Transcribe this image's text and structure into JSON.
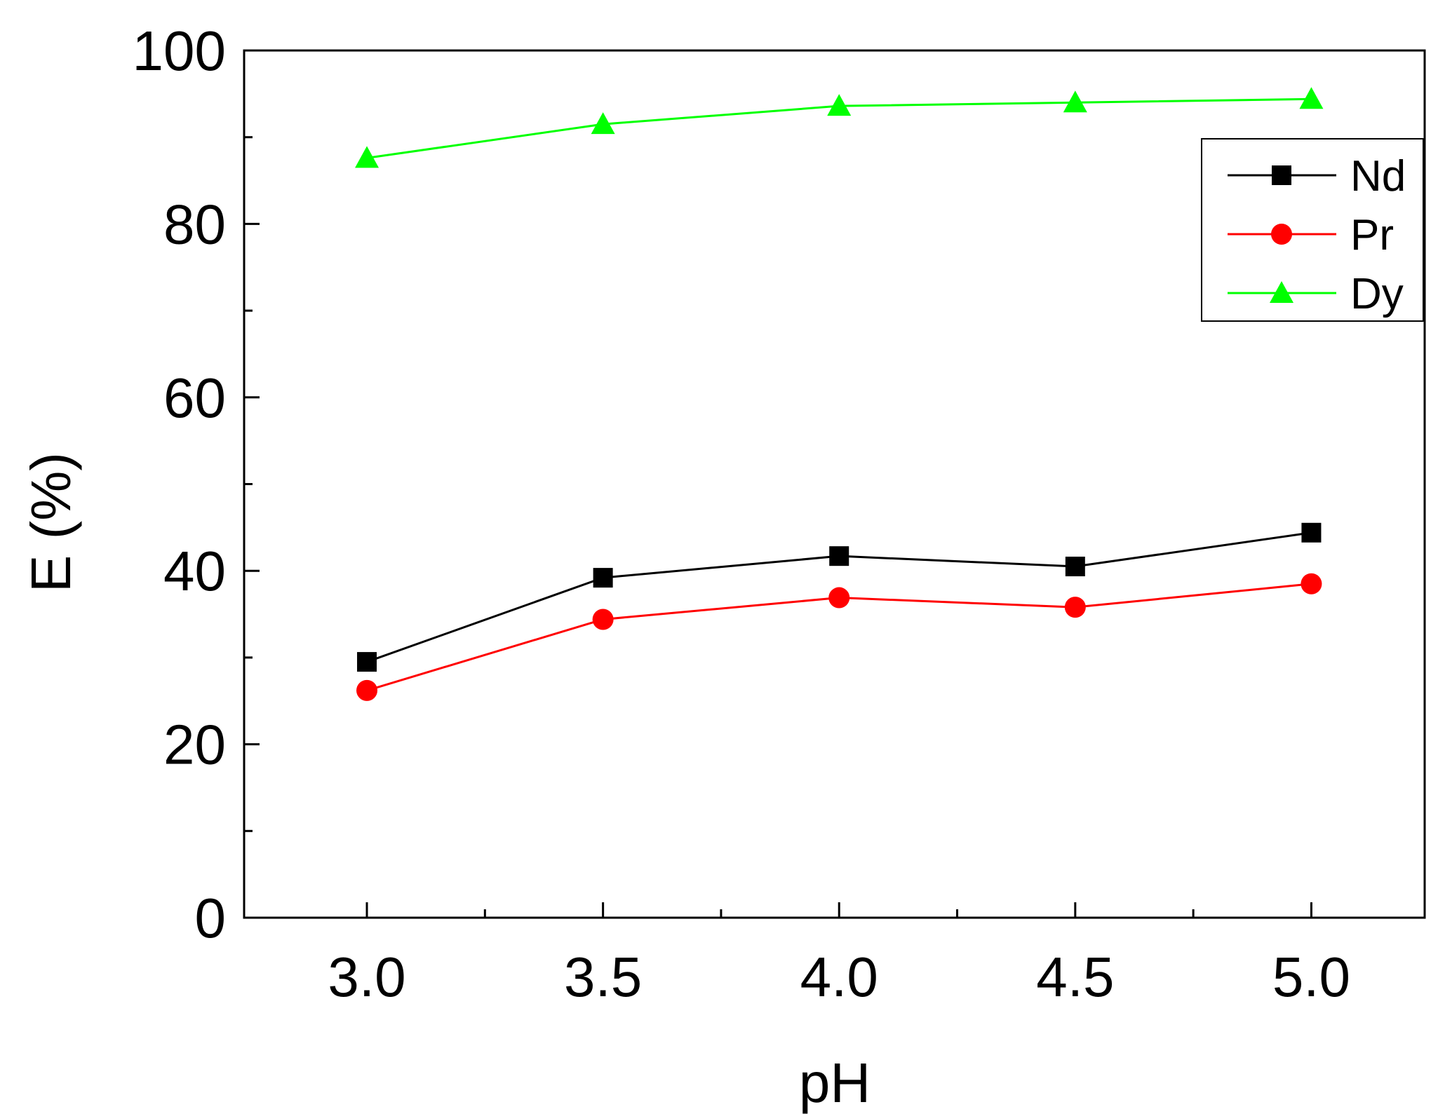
{
  "chart_data": {
    "type": "line",
    "title": "",
    "xlabel": "pH",
    "ylabel": "E (%)",
    "x": [
      3.0,
      3.5,
      4.0,
      4.5,
      5.0
    ],
    "xlim": [
      2.74,
      5.24
    ],
    "ylim": [
      0,
      100
    ],
    "x_ticks": [
      3.0,
      3.5,
      4.0,
      4.5,
      5.0
    ],
    "x_tick_labels": [
      "3.0",
      "3.5",
      "4.0",
      "4.5",
      "5.0"
    ],
    "x_minor_ticks": [
      3.25,
      3.75,
      4.25,
      4.75
    ],
    "y_ticks": [
      0,
      20,
      40,
      60,
      80,
      100
    ],
    "y_tick_labels": [
      "0",
      "20",
      "40",
      "60",
      "80",
      "100"
    ],
    "y_minor_ticks": [
      10,
      30,
      50,
      70,
      90
    ],
    "grid": false,
    "legend_position": "top-right",
    "series": [
      {
        "name": "Nd",
        "marker": "square",
        "color": "#000000",
        "values": [
          29.5,
          39.2,
          41.7,
          40.5,
          44.4
        ]
      },
      {
        "name": "Pr",
        "marker": "circle",
        "color": "#ff0000",
        "values": [
          26.2,
          34.4,
          36.9,
          35.8,
          38.5
        ]
      },
      {
        "name": "Dy",
        "marker": "triangle",
        "color": "#00ff00",
        "values": [
          87.6,
          91.5,
          93.6,
          94.0,
          94.4
        ]
      }
    ]
  }
}
